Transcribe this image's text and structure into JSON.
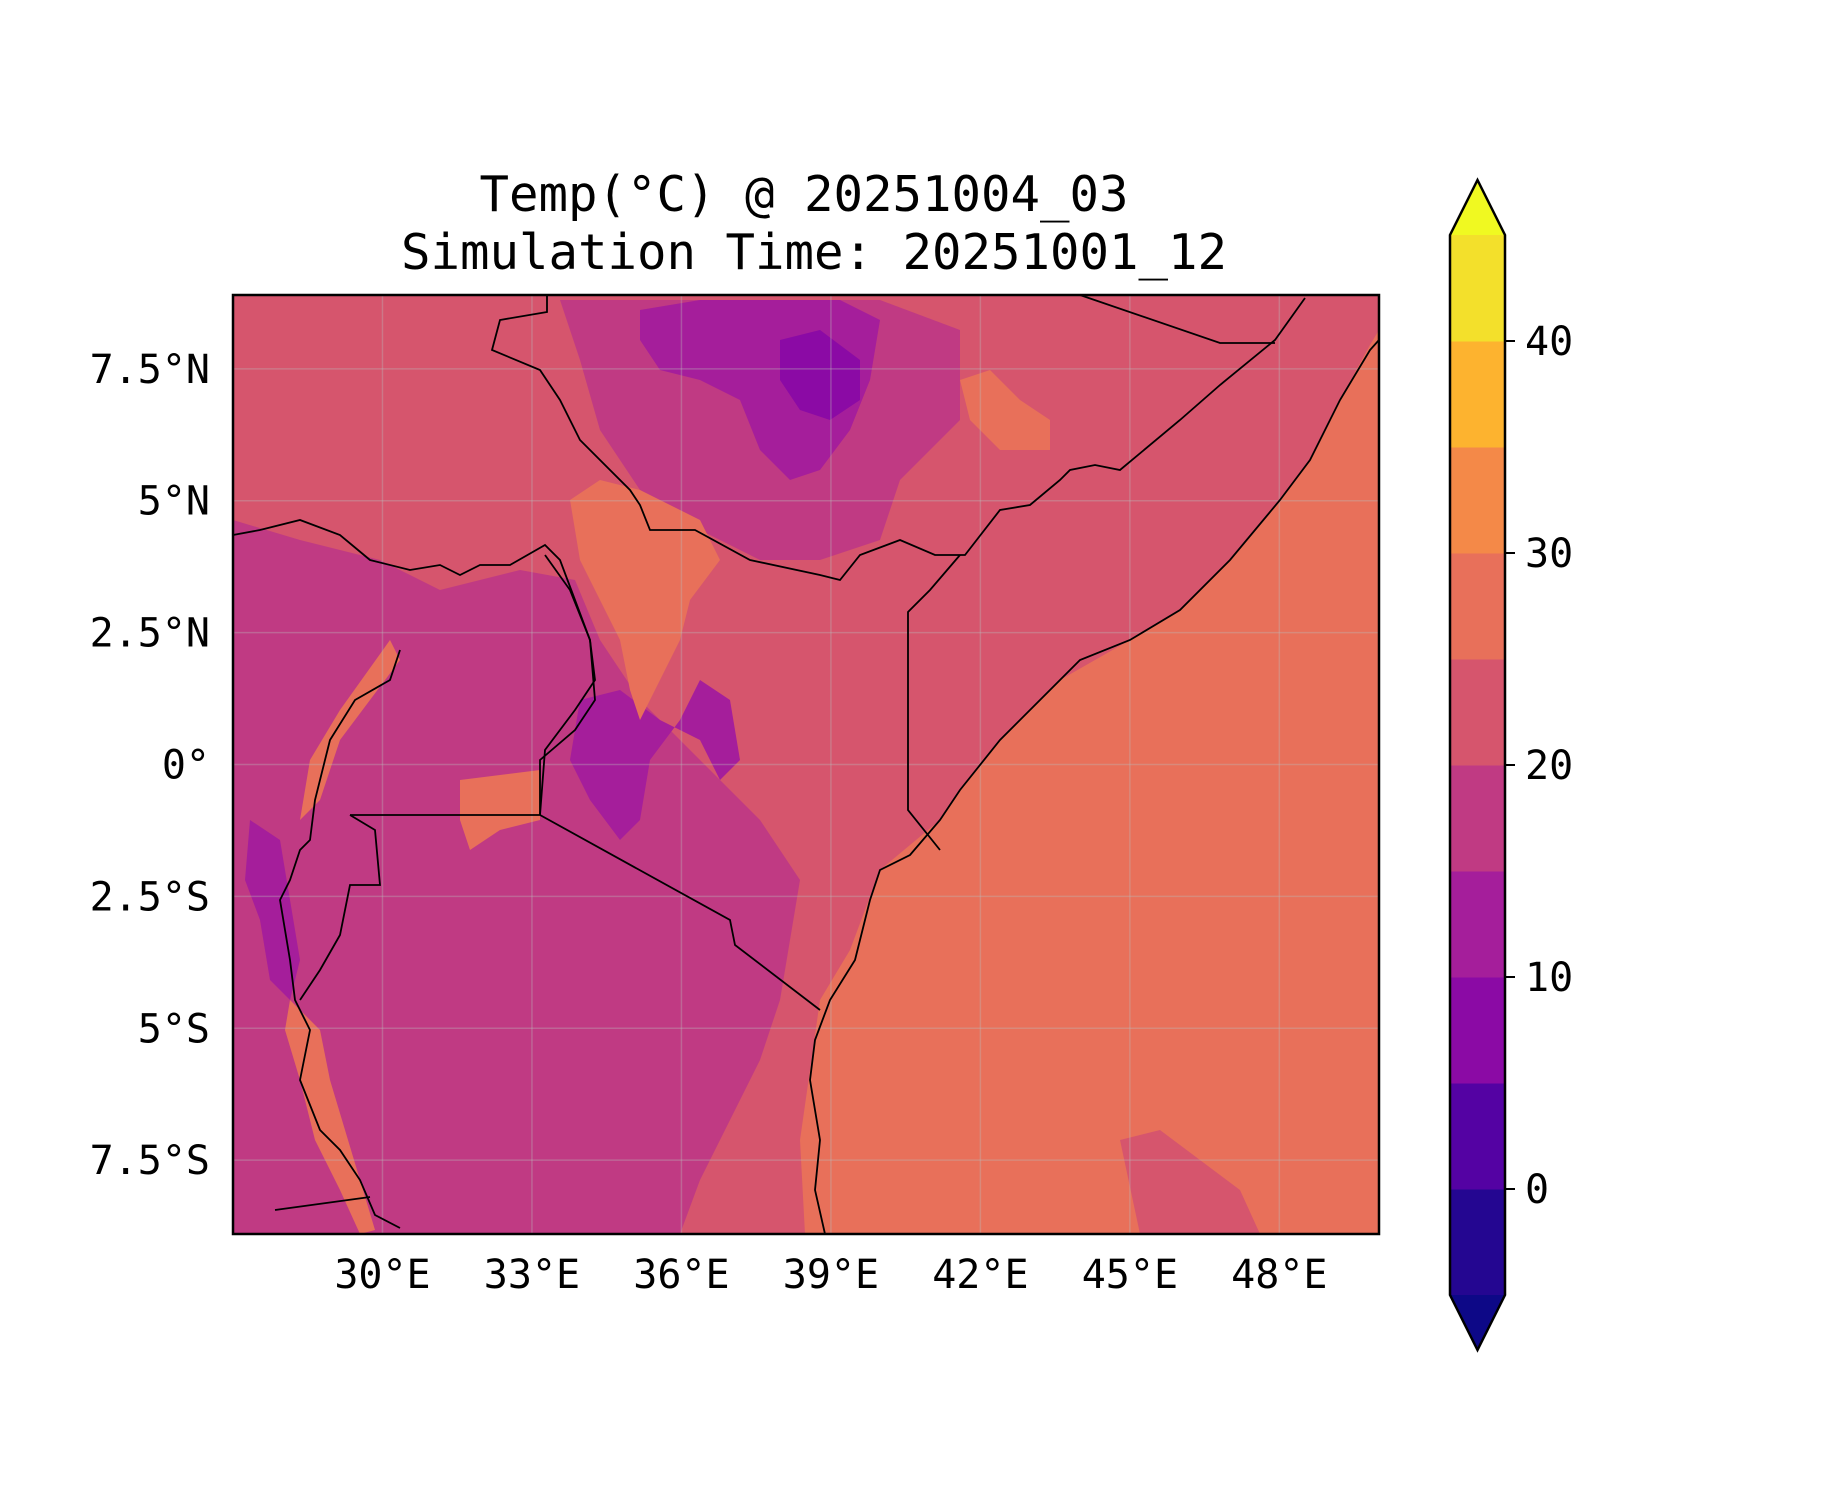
{
  "title": "Temp(°C) @ 20251004_03",
  "subtitle": "Simulation Time: 20251001_12",
  "map": {
    "lon_range": [
      27.0,
      50.0
    ],
    "lat_range": [
      -8.9,
      8.9
    ],
    "x_ticks": [
      "30°E",
      "33°E",
      "36°E",
      "39°E",
      "42°E",
      "45°E",
      "48°E"
    ],
    "x_tick_values": [
      30,
      33,
      36,
      39,
      42,
      45,
      48
    ],
    "y_ticks": [
      "7.5°N",
      "5°N",
      "2.5°N",
      "0°",
      "2.5°S",
      "5°S",
      "7.5°S"
    ],
    "y_tick_values": [
      7.5,
      5,
      2.5,
      0,
      -2.5,
      -5,
      -7.5
    ],
    "gridlines": true
  },
  "colorbar": {
    "colormap": "plasma",
    "extend": "both",
    "levels": [
      -5,
      0,
      5,
      10,
      15,
      20,
      25,
      30,
      35,
      40,
      45
    ],
    "tick_labels": [
      "0",
      "10",
      "20",
      "30",
      "40"
    ],
    "tick_values": [
      0,
      10,
      20,
      30,
      40
    ],
    "colors": [
      "#0d0887",
      "#240691",
      "#5402a3",
      "#8b0aa5",
      "#a51e9b",
      "#c03a83",
      "#d6556d",
      "#e8705a",
      "#f48948",
      "#fdb32f",
      "#f3e02b",
      "#f0f921"
    ],
    "under_color": "#0d0887",
    "over_color": "#f0f921"
  }
}
